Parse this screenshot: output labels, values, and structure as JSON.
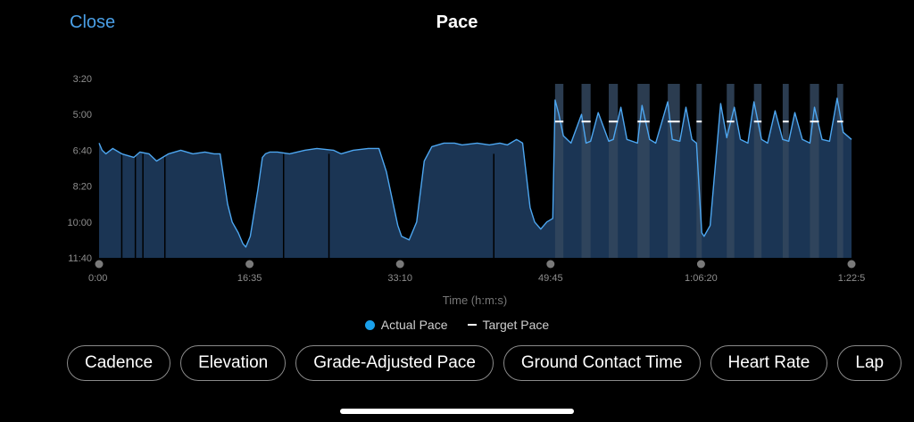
{
  "header": {
    "close_label": "Close",
    "title": "Pace"
  },
  "chart_data": {
    "type": "area",
    "title": "Pace",
    "xlabel": "Time (h:m:s)",
    "ylabel": "",
    "y_axis_inverted": true,
    "y_ticks": [
      "3:20",
      "5:00",
      "6:40",
      "8:20",
      "10:00",
      "11:40"
    ],
    "y_tick_seconds": [
      200,
      300,
      400,
      500,
      600,
      700
    ],
    "x_ticks": [
      "0:00",
      "16:35",
      "33:10",
      "49:45",
      "1:06:20",
      "1:22:5"
    ],
    "x_tick_seconds": [
      0,
      995,
      1990,
      2985,
      3980,
      4975
    ],
    "xlim_seconds": [
      0,
      4975
    ],
    "ylim_seconds": [
      200,
      700
    ],
    "legend": [
      "Actual Pace",
      "Target Pace"
    ],
    "legend_position": "bottom",
    "colors": {
      "actual_line": "#4da6f0",
      "actual_fill": "#1b3554",
      "highlight_fill": "#32465e",
      "target": "#ffffff",
      "axis_text": "#8e8e8e"
    },
    "series": [
      {
        "name": "Actual Pace",
        "x": [
          0,
          10,
          20,
          45,
          90,
          150,
          230,
          270,
          330,
          380,
          460,
          540,
          620,
          700,
          760,
          800,
          850,
          880,
          920,
          950,
          970,
          1000,
          1050,
          1080,
          1100,
          1130,
          1180,
          1260,
          1360,
          1440,
          1550,
          1600,
          1680,
          1780,
          1850,
          1900,
          1950,
          1975,
          2000,
          2050,
          2100,
          2150,
          2200,
          2280,
          2350,
          2400,
          2500,
          2580,
          2650,
          2700,
          2760,
          2800,
          2850,
          2880,
          2920,
          2960,
          3000,
          3015,
          3040,
          3070,
          3120,
          3190,
          3220,
          3250,
          3300,
          3370,
          3400,
          3450,
          3490,
          3560,
          3590,
          3640,
          3680,
          3760,
          3790,
          3840,
          3880,
          3920,
          3950,
          3985,
          4000,
          4040,
          4110,
          4150,
          4200,
          4240,
          4290,
          4330,
          4380,
          4420,
          4470,
          4520,
          4560,
          4600,
          4650,
          4700,
          4730,
          4780,
          4830,
          4880,
          4920,
          4975
        ],
        "y": [
          380,
          390,
          400,
          410,
          395,
          410,
          420,
          405,
          410,
          430,
          410,
          400,
          410,
          405,
          410,
          410,
          550,
          600,
          630,
          660,
          670,
          640,
          510,
          420,
          410,
          405,
          405,
          410,
          400,
          395,
          400,
          410,
          400,
          395,
          395,
          460,
          560,
          610,
          640,
          650,
          600,
          430,
          390,
          380,
          380,
          385,
          380,
          385,
          380,
          385,
          370,
          380,
          560,
          600,
          620,
          600,
          590,
          260,
          300,
          360,
          380,
          300,
          380,
          375,
          295,
          375,
          370,
          280,
          370,
          380,
          275,
          370,
          380,
          265,
          370,
          375,
          280,
          370,
          380,
          630,
          640,
          610,
          270,
          365,
          280,
          370,
          380,
          265,
          370,
          380,
          290,
          370,
          375,
          295,
          370,
          380,
          280,
          370,
          375,
          255,
          350,
          370
        ]
      },
      {
        "name": "Target Pace",
        "target_seconds": 320,
        "intervals": [
          [
            3015,
            3070
          ],
          [
            3190,
            3250
          ],
          [
            3370,
            3430
          ],
          [
            3560,
            3640
          ],
          [
            3760,
            3840
          ],
          [
            3950,
            3985
          ],
          [
            4150,
            4200
          ],
          [
            4330,
            4380
          ],
          [
            4520,
            4560
          ],
          [
            4700,
            4760
          ],
          [
            4880,
            4920
          ]
        ]
      }
    ],
    "highlight_intervals": [
      [
        3015,
        3070
      ],
      [
        3190,
        3250
      ],
      [
        3370,
        3430
      ],
      [
        3560,
        3640
      ],
      [
        3760,
        3840
      ],
      [
        3950,
        3985
      ],
      [
        4150,
        4200
      ],
      [
        4330,
        4380
      ],
      [
        4520,
        4560
      ],
      [
        4700,
        4760
      ],
      [
        4880,
        4920
      ]
    ],
    "lap_markers_seconds": [
      150,
      240,
      290,
      435,
      1220,
      1520,
      2610
    ]
  },
  "metrics": [
    {
      "label": "Cadence"
    },
    {
      "label": "Elevation"
    },
    {
      "label": "Grade-Adjusted Pace"
    },
    {
      "label": "Ground Contact Time"
    },
    {
      "label": "Heart Rate"
    },
    {
      "label": "Lap"
    }
  ]
}
